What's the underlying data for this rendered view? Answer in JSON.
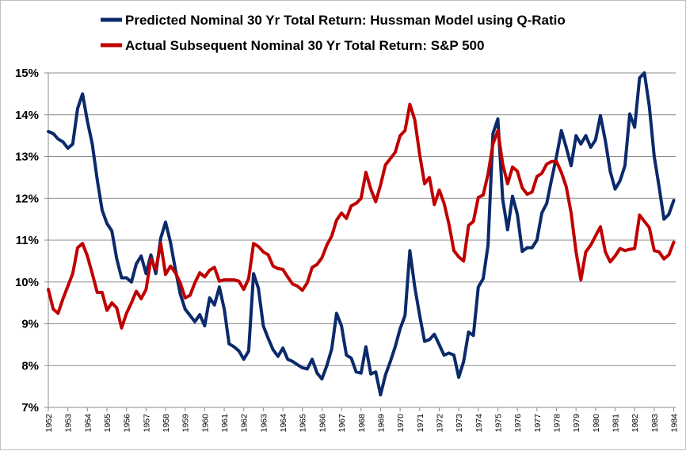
{
  "chart_data": {
    "type": "line",
    "title": "",
    "xlabel": "",
    "ylabel": "",
    "x_range": [
      1952,
      1984.1
    ],
    "ylim": [
      7,
      15
    ],
    "y_ticks": [
      7,
      8,
      9,
      10,
      11,
      12,
      13,
      14,
      15
    ],
    "y_tick_labels": [
      "7%",
      "8%",
      "9%",
      "10%",
      "11%",
      "12%",
      "13%",
      "14%",
      "15%"
    ],
    "x_ticks": [
      1952,
      1953,
      1954,
      1955,
      1956,
      1957,
      1958,
      1959,
      1960,
      1961,
      1962,
      1963,
      1964,
      1965,
      1966,
      1967,
      1968,
      1969,
      1970,
      1971,
      1972,
      1973,
      1974,
      1975,
      1976,
      1977,
      1978,
      1979,
      1980,
      1981,
      1982,
      1983,
      1984
    ],
    "x_tick_labels": [
      "1952",
      "1953",
      "1954",
      "1955",
      "1956",
      "1957",
      "1958",
      "1959",
      "1960",
      "1961",
      "1962",
      "1963",
      "1964",
      "1965",
      "1966",
      "1967",
      "1968",
      "1969",
      "1970",
      "1971",
      "1972",
      "1973",
      "1974",
      "1975",
      "1976",
      "1977",
      "1978",
      "1979",
      "1980",
      "1981",
      "1982",
      "1983",
      "1984"
    ],
    "grid": "horizontal",
    "legend_position": "top",
    "series": [
      {
        "name": "Predicted Nominal 30 Yr Total Return: Hussman Model using Q-Ratio",
        "color": "#0b2a6b",
        "x": [
          1952.0,
          1952.25,
          1952.5,
          1952.75,
          1953.0,
          1953.25,
          1953.5,
          1953.75,
          1954.0,
          1954.25,
          1954.5,
          1954.75,
          1955.0,
          1955.25,
          1955.5,
          1955.75,
          1956.0,
          1956.25,
          1956.5,
          1956.75,
          1957.0,
          1957.25,
          1957.5,
          1957.75,
          1958.0,
          1958.25,
          1958.5,
          1958.75,
          1959.0,
          1959.25,
          1959.5,
          1959.75,
          1960.0,
          1960.25,
          1960.5,
          1960.75,
          1961.0,
          1961.25,
          1961.5,
          1961.75,
          1962.0,
          1962.25,
          1962.5,
          1962.75,
          1963.0,
          1963.25,
          1963.5,
          1963.75,
          1964.0,
          1964.25,
          1964.5,
          1964.75,
          1965.0,
          1965.25,
          1965.5,
          1965.75,
          1966.0,
          1966.25,
          1966.5,
          1966.75,
          1967.0,
          1967.25,
          1967.5,
          1967.75,
          1968.0,
          1968.25,
          1968.5,
          1968.75,
          1969.0,
          1969.25,
          1969.5,
          1969.75,
          1970.0,
          1970.25,
          1970.5,
          1970.75,
          1971.0,
          1971.25,
          1971.5,
          1971.75,
          1972.0,
          1972.25,
          1972.5,
          1972.75,
          1973.0,
          1973.25,
          1973.5,
          1973.75,
          1974.0,
          1974.25,
          1974.5,
          1974.75,
          1975.0,
          1975.25,
          1975.5,
          1975.75,
          1976.0,
          1976.25,
          1976.5,
          1976.75,
          1977.0,
          1977.25,
          1977.5,
          1977.75,
          1978.0,
          1978.25,
          1978.5,
          1978.75,
          1979.0,
          1979.25,
          1979.5,
          1979.75,
          1980.0,
          1980.25,
          1980.5,
          1980.75,
          1981.0,
          1981.25,
          1981.5,
          1981.75,
          1982.0,
          1982.25,
          1982.5,
          1982.75,
          1983.0,
          1983.25,
          1983.5,
          1983.75,
          1984.0
        ],
        "values": [
          13.6,
          13.55,
          13.42,
          13.35,
          13.2,
          13.3,
          14.15,
          14.5,
          13.85,
          13.3,
          12.45,
          11.72,
          11.4,
          11.22,
          10.55,
          10.1,
          10.1,
          10.0,
          10.43,
          10.62,
          10.2,
          10.65,
          10.2,
          11.05,
          11.43,
          10.95,
          10.3,
          9.72,
          9.35,
          9.2,
          9.05,
          9.22,
          8.95,
          9.62,
          9.45,
          9.88,
          9.35,
          8.52,
          8.45,
          8.35,
          8.15,
          8.35,
          10.2,
          9.85,
          8.95,
          8.65,
          8.38,
          8.22,
          8.42,
          8.15,
          8.1,
          8.02,
          7.95,
          7.92,
          8.15,
          7.82,
          7.68,
          8.0,
          8.4,
          9.25,
          8.95,
          8.25,
          8.18,
          7.85,
          7.82,
          8.45,
          7.8,
          7.85,
          7.3,
          7.78,
          8.1,
          8.45,
          8.88,
          9.2,
          10.75,
          9.88,
          9.2,
          8.58,
          8.62,
          8.75,
          8.5,
          8.25,
          8.3,
          8.25,
          7.72,
          8.1,
          8.8,
          8.72,
          9.88,
          10.08,
          10.88,
          13.55,
          13.9,
          11.98,
          11.25,
          12.05,
          11.62,
          10.73,
          10.82,
          10.82,
          11.0,
          11.65,
          11.88,
          12.45,
          13.0,
          13.62,
          13.22,
          12.78,
          13.5,
          13.3,
          13.5,
          13.22,
          13.4,
          13.98,
          13.38,
          12.65,
          12.22,
          12.42,
          12.78,
          14.02,
          13.7,
          14.88,
          15.0,
          14.2,
          13.0,
          12.28,
          11.5,
          11.62,
          11.95
        ]
      },
      {
        "name": "Actual Subsequent  Nominal 30 Yr Total Return: S&P 500",
        "color": "#c00000",
        "x": [
          1952.0,
          1952.25,
          1952.5,
          1952.75,
          1953.0,
          1953.25,
          1953.5,
          1953.75,
          1954.0,
          1954.25,
          1954.5,
          1954.75,
          1955.0,
          1955.25,
          1955.5,
          1955.75,
          1956.0,
          1956.25,
          1956.5,
          1956.75,
          1957.0,
          1957.25,
          1957.5,
          1957.75,
          1958.0,
          1958.25,
          1958.5,
          1958.75,
          1959.0,
          1959.25,
          1959.5,
          1959.75,
          1960.0,
          1960.25,
          1960.5,
          1960.75,
          1961.0,
          1961.25,
          1961.5,
          1961.75,
          1962.0,
          1962.25,
          1962.5,
          1962.75,
          1963.0,
          1963.25,
          1963.5,
          1963.75,
          1964.0,
          1964.25,
          1964.5,
          1964.75,
          1965.0,
          1965.25,
          1965.5,
          1965.75,
          1966.0,
          1966.25,
          1966.5,
          1966.75,
          1967.0,
          1967.25,
          1967.5,
          1967.75,
          1968.0,
          1968.25,
          1968.5,
          1968.75,
          1969.0,
          1969.25,
          1969.5,
          1969.75,
          1970.0,
          1970.25,
          1970.5,
          1970.75,
          1971.0,
          1971.25,
          1971.5,
          1971.75,
          1972.0,
          1972.25,
          1972.5,
          1972.75,
          1973.0,
          1973.25,
          1973.5,
          1973.75,
          1974.0,
          1974.25,
          1974.5,
          1974.75,
          1975.0,
          1975.25,
          1975.5,
          1975.75,
          1976.0,
          1976.25,
          1976.5,
          1976.75,
          1977.0,
          1977.25,
          1977.5,
          1977.75,
          1978.0,
          1978.25,
          1978.5,
          1978.75,
          1979.0,
          1979.25,
          1979.5,
          1979.75,
          1980.0,
          1980.25,
          1980.5,
          1980.75,
          1981.0,
          1981.25,
          1981.5,
          1981.75,
          1982.0,
          1982.25,
          1982.5,
          1982.75,
          1983.0,
          1983.25,
          1983.5,
          1983.75,
          1984.0
        ],
        "values": [
          9.82,
          9.35,
          9.25,
          9.6,
          9.9,
          10.2,
          10.82,
          10.92,
          10.62,
          10.2,
          9.75,
          9.75,
          9.32,
          9.5,
          9.38,
          8.9,
          9.25,
          9.5,
          9.78,
          9.6,
          9.82,
          10.55,
          10.3,
          10.92,
          10.18,
          10.38,
          10.22,
          9.98,
          9.62,
          9.68,
          9.98,
          10.22,
          10.12,
          10.28,
          10.35,
          10.02,
          10.05,
          10.05,
          10.05,
          10.02,
          9.82,
          10.08,
          10.92,
          10.85,
          10.72,
          10.65,
          10.38,
          10.32,
          10.3,
          10.12,
          9.95,
          9.9,
          9.8,
          9.98,
          10.35,
          10.42,
          10.58,
          10.88,
          11.1,
          11.48,
          11.65,
          11.52,
          11.82,
          11.88,
          12.0,
          12.62,
          12.22,
          11.92,
          12.32,
          12.8,
          12.95,
          13.1,
          13.5,
          13.62,
          14.25,
          13.88,
          13.05,
          12.35,
          12.5,
          11.85,
          12.2,
          11.88,
          11.38,
          10.75,
          10.6,
          10.5,
          11.35,
          11.45,
          12.02,
          12.08,
          12.58,
          13.3,
          13.62,
          12.82,
          12.35,
          12.75,
          12.65,
          12.25,
          12.1,
          12.15,
          12.52,
          12.6,
          12.82,
          12.88,
          12.88,
          12.62,
          12.28,
          11.65,
          10.72,
          10.05,
          10.72,
          10.88,
          11.1,
          11.32,
          10.72,
          10.48,
          10.62,
          10.8,
          10.75,
          10.78,
          10.8,
          11.6,
          11.45,
          11.3,
          10.75,
          10.72,
          10.55,
          10.65,
          10.95
        ]
      }
    ]
  }
}
